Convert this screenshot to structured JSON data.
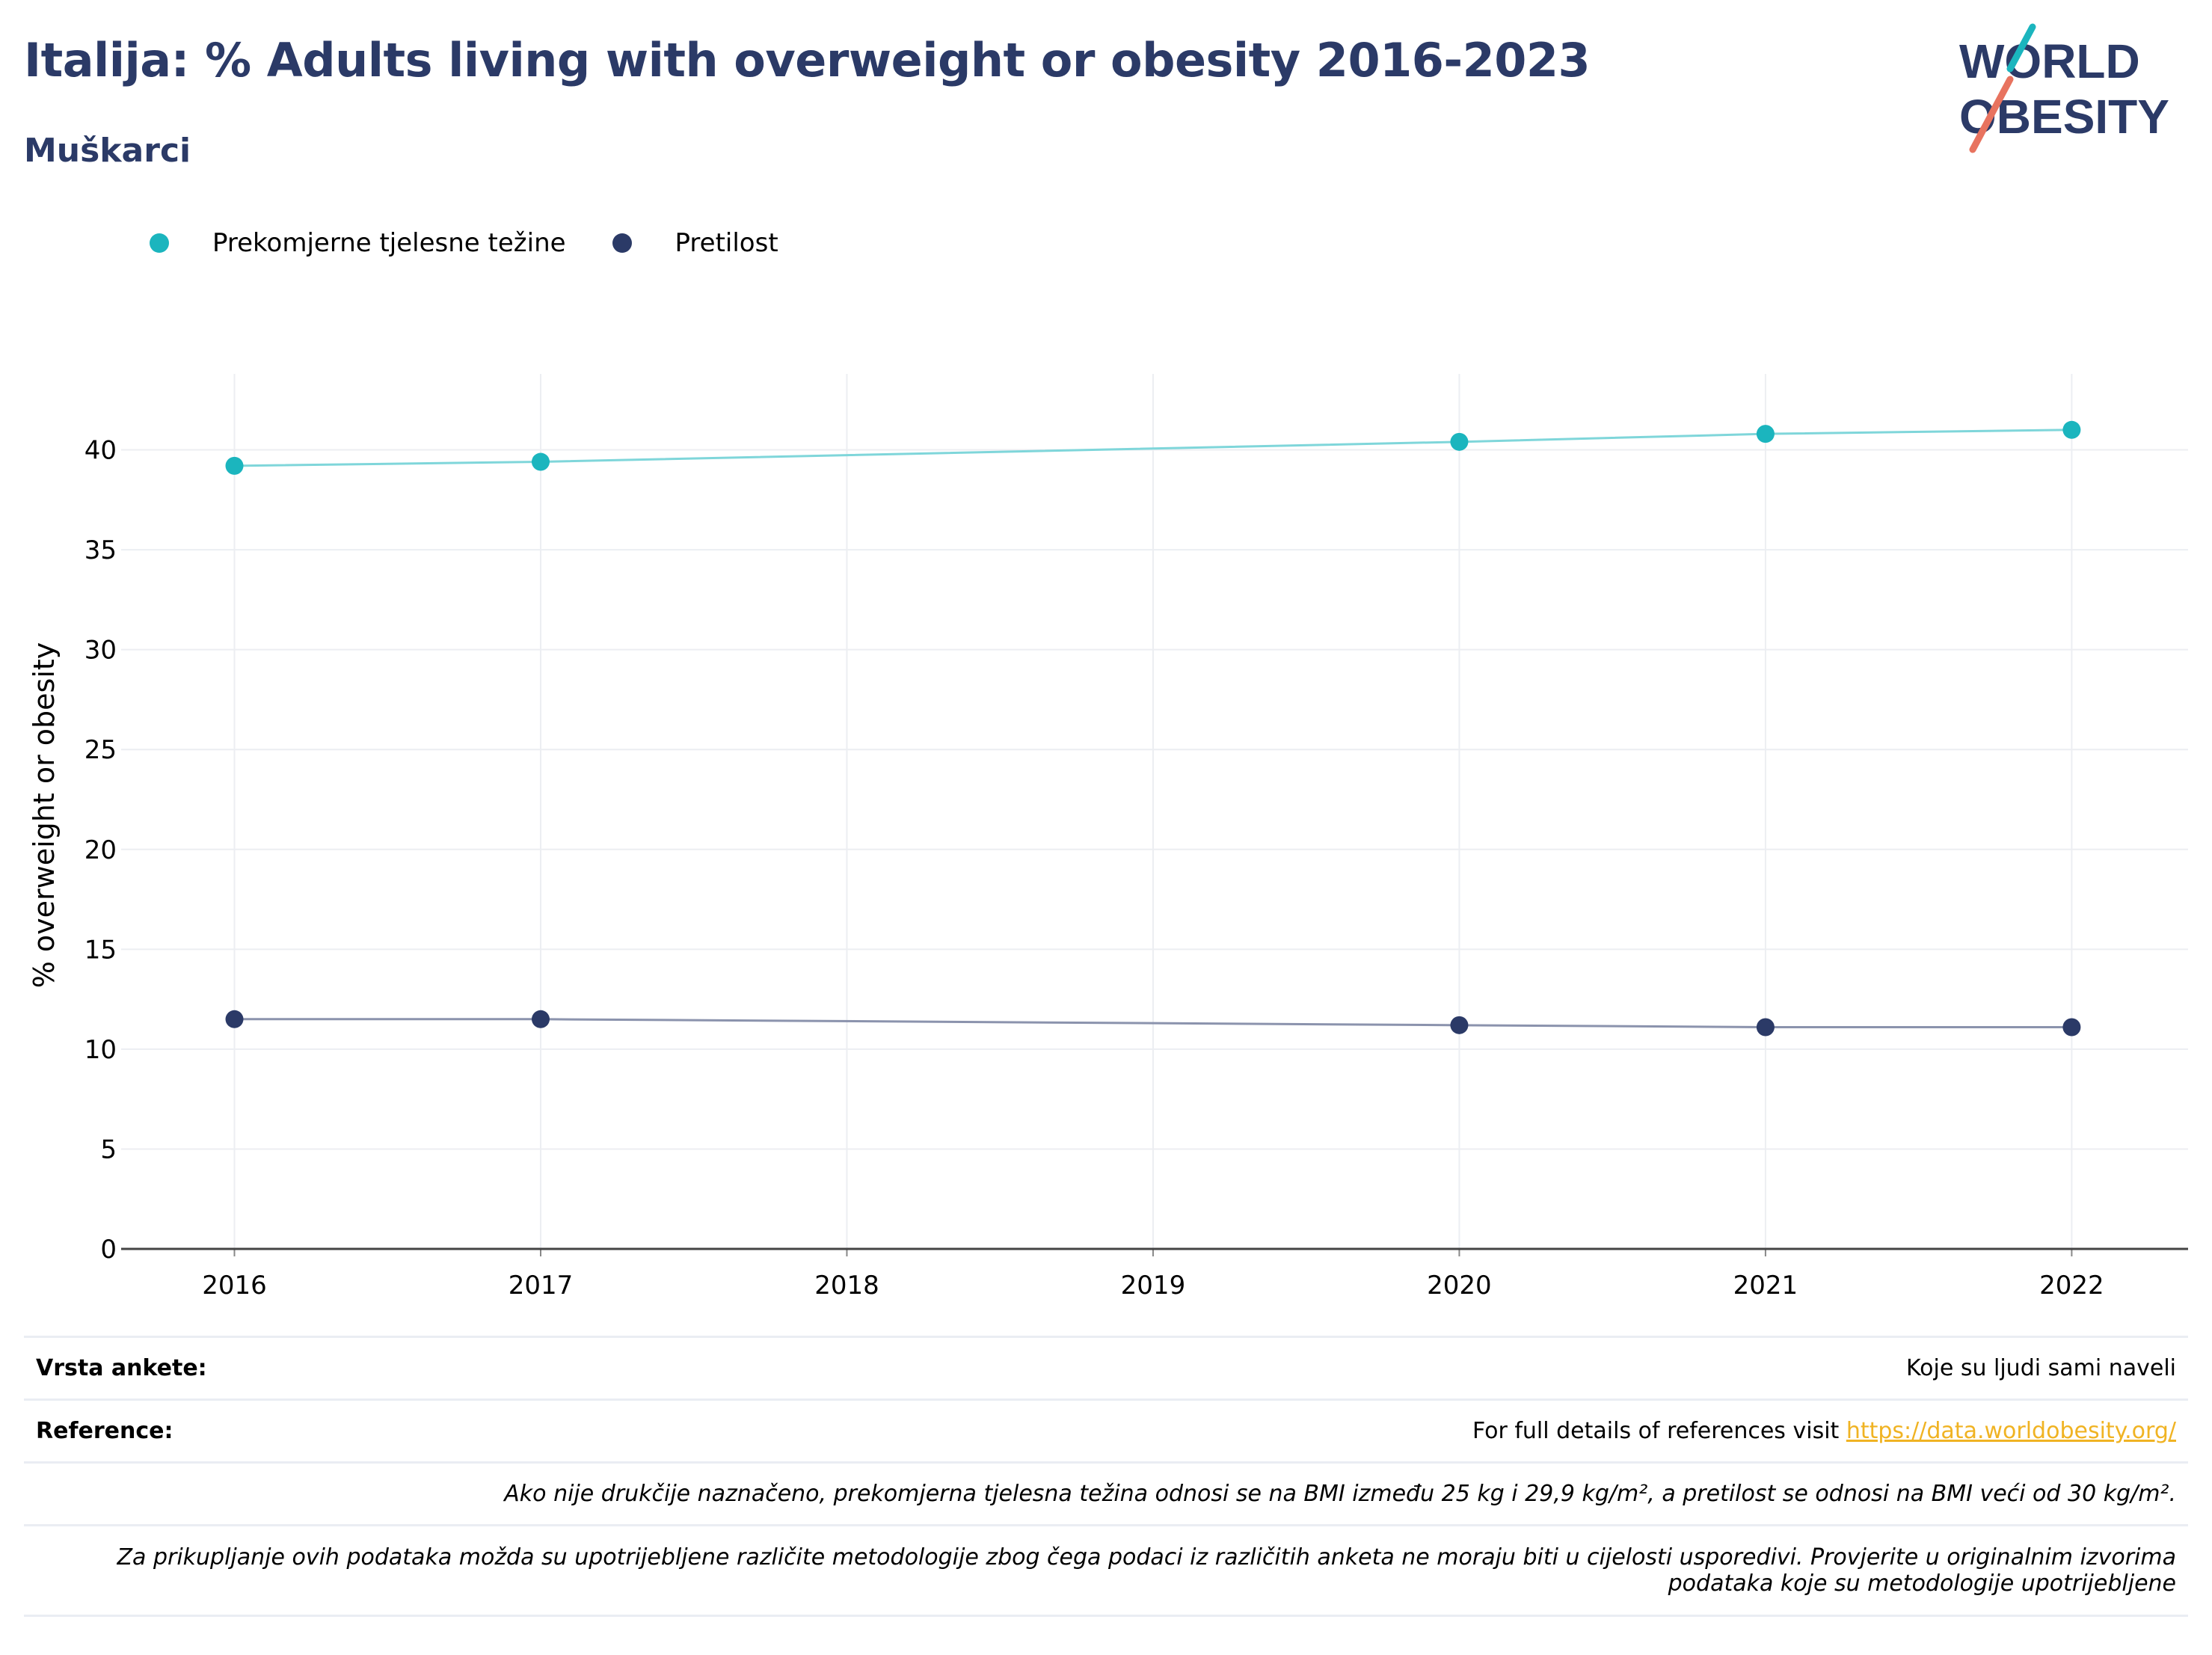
{
  "header": {
    "title": "Italija: % Adults living with overweight or obesity 2016-2023",
    "subtitle": "Muškarci"
  },
  "logo": {
    "line1": "WORLD",
    "line2": "OBESITY"
  },
  "colors": {
    "title": "#2b3a67",
    "overweight": "#1bb5be",
    "obesity": "#2b3a67",
    "link": "#f0b323"
  },
  "chart_data": {
    "type": "line",
    "ylabel": "% overweight or obesity",
    "xlabel": "",
    "x": [
      2016,
      2017,
      2020,
      2021,
      2022
    ],
    "xticks": [
      "2016",
      "2017",
      "2018",
      "2019",
      "2020",
      "2021",
      "2022"
    ],
    "yticks": [
      0,
      5,
      10,
      15,
      20,
      25,
      30,
      35,
      40
    ],
    "ylim": [
      0,
      43.8
    ],
    "xlim": [
      2015.63,
      2022.38
    ],
    "grid": true,
    "legend_position": "top-left",
    "series": [
      {
        "name": "Prekomjerne tjelesne težine",
        "color": "#1bb5be",
        "line_color": "#7fd6da",
        "values": [
          39.2,
          39.4,
          40.4,
          40.8,
          41.0
        ]
      },
      {
        "name": "Pretilost",
        "color": "#2b3a67",
        "line_color": "#8b93ad",
        "values": [
          11.5,
          11.5,
          11.2,
          11.1,
          11.1
        ]
      }
    ]
  },
  "footer": {
    "survey_label": "Vrsta ankete:",
    "survey_value": "Koje su ljudi sami naveli",
    "reference_label": "Reference:",
    "reference_text": "For full details of references visit ",
    "reference_link": "https://data.worldobesity.org/",
    "note1": "Ako nije drukčije naznačeno, prekomjerna tjelesna težina odnosi se na BMI između 25 kg i 29,9 kg/m², a pretilost se odnosi na BMI veći od 30 kg/m².",
    "note2_line1": "Za prikupljanje ovih podataka možda su upotrijebljene različite metodologije zbog čega podaci iz različitih anketa ne moraju biti u cijelosti usporedivi. Provjerite u originalnim izvorima",
    "note2_line2": "podataka koje su metodologije upotrijebljene"
  }
}
